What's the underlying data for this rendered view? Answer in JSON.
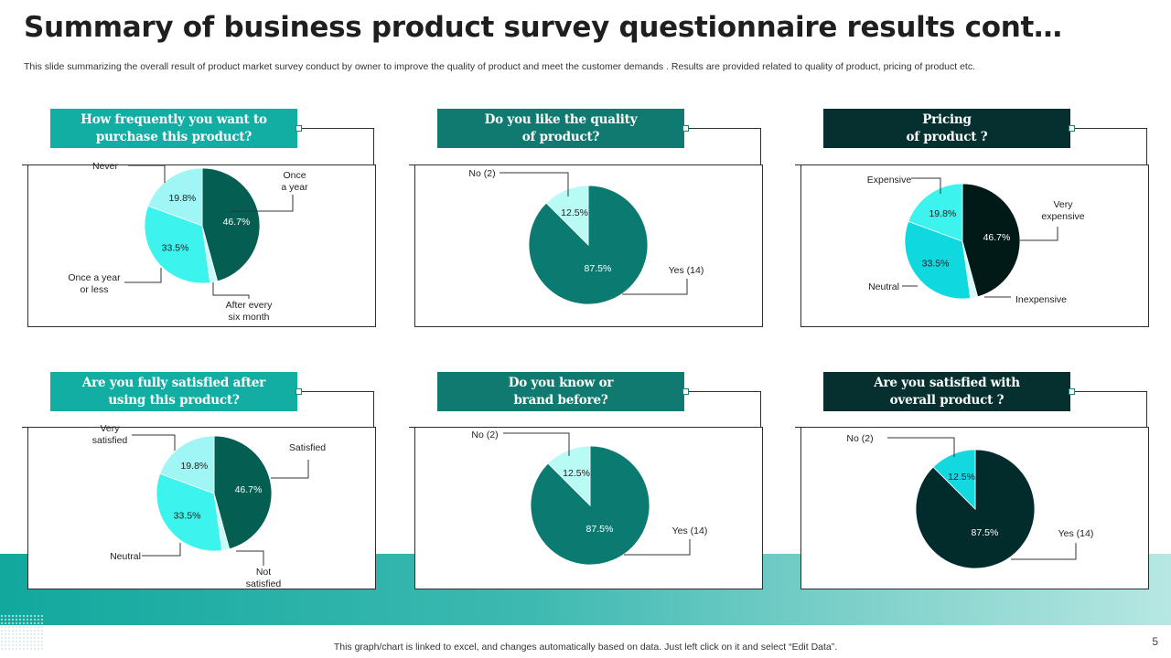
{
  "page": {
    "title": "Summary of business product survey questionnaire results cont…",
    "subtitle": "This slide summarizing the overall result of product market survey conduct by owner to improve the quality of product and meet the customer demands . Results are provided related to  quality of product, pricing of product etc.",
    "footer": "This graph/chart is linked to excel, and changes automatically based on data. Just left click on it and select “Edit Data”.",
    "page_number": "5"
  },
  "colors": {
    "teal_light_header": "#12ada3",
    "teal_mid_header": "#117a70",
    "teal_dark_header": "#05302f",
    "darkest": "#011a18",
    "dark_green": "#055e52",
    "teal": "#0b7a70",
    "aqua": "#3df3ee",
    "aqua_mid": "#0fd8df",
    "pale": "#9ff6f5",
    "pale_aqua": "#b8fbf5",
    "cyan": "#14d8df"
  },
  "chart_data": [
    {
      "type": "pie",
      "title": "How frequently you want to purchase this  product?",
      "title_lines": [
        "How frequently you want to",
        "purchase this  product?"
      ],
      "header_color": "#12ada3",
      "slices": [
        {
          "label": "Once a year",
          "label_lines": [
            "Once",
            "a year"
          ],
          "value": 46.7,
          "display": "46.7%",
          "color": "#055e52",
          "text_color": "#ffffff"
        },
        {
          "label": "After every six month",
          "label_lines": [
            "After every",
            "six month"
          ],
          "value": 2.1,
          "display": "",
          "color": "#c8fbf8",
          "text_color": "#222"
        },
        {
          "label": "Once a year or less",
          "label_lines": [
            "Once a year",
            "or less"
          ],
          "value": 33.5,
          "display": "33.5%",
          "color": "#3df3ee",
          "text_color": "#222"
        },
        {
          "label": "Never",
          "label_lines": [
            "Never"
          ],
          "value": 19.8,
          "display": "19.8%",
          "color": "#9ff6f5",
          "text_color": "#222"
        }
      ]
    },
    {
      "type": "pie",
      "title": "Do you like the quality of product?",
      "title_lines": [
        "Do you like the quality",
        "of product?"
      ],
      "header_color": "#117a70",
      "slices": [
        {
          "label": "Yes (14)",
          "label_lines": [
            "Yes (14)"
          ],
          "value": 87.5,
          "display": "87.5%",
          "color": "#0b7a70",
          "text_color": "#ffffff"
        },
        {
          "label": "No (2)",
          "label_lines": [
            "No (2)"
          ],
          "value": 12.5,
          "display": "12.5%",
          "color": "#b8fbf5",
          "text_color": "#222"
        }
      ]
    },
    {
      "type": "pie",
      "title": "Pricing of product ?",
      "title_lines": [
        "Pricing",
        "of product ?"
      ],
      "header_color": "#05302f",
      "slices": [
        {
          "label": "Very expensive",
          "label_lines": [
            "Very",
            "expensive"
          ],
          "value": 46.7,
          "display": "46.7%",
          "color": "#011a18",
          "text_color": "#ffffff"
        },
        {
          "label": "Inexpensive",
          "label_lines": [
            "Inexpensive"
          ],
          "value": 2.1,
          "display": "",
          "color": "#d6fbfb",
          "text_color": "#222"
        },
        {
          "label": "Neutral",
          "label_lines": [
            "Neutral"
          ],
          "value": 33.5,
          "display": "33.5%",
          "color": "#0fd8df",
          "text_color": "#222"
        },
        {
          "label": "Expensive",
          "label_lines": [
            "Expensive"
          ],
          "value": 19.8,
          "display": "19.8%",
          "color": "#3df3ee",
          "text_color": "#222"
        }
      ]
    },
    {
      "type": "pie",
      "title": "Are you fully satisfied after using this product?",
      "title_lines": [
        "Are you fully satisfied after",
        "using this product?"
      ],
      "header_color": "#12ada3",
      "slices": [
        {
          "label": "Satisfied",
          "label_lines": [
            "Satisfied"
          ],
          "value": 46.7,
          "display": "46.7%",
          "color": "#055e52",
          "text_color": "#ffffff"
        },
        {
          "label": "Not satisfied",
          "label_lines": [
            "Not",
            "satisfied"
          ],
          "value": 2.1,
          "display": "",
          "color": "#c8fbf8",
          "text_color": "#222"
        },
        {
          "label": "Neutral",
          "label_lines": [
            "Neutral"
          ],
          "value": 33.5,
          "display": "33.5%",
          "color": "#3df3ee",
          "text_color": "#222"
        },
        {
          "label": "Very satisfied",
          "label_lines": [
            "Very",
            "satisfied"
          ],
          "value": 19.8,
          "display": "19.8%",
          "color": "#9ff6f5",
          "text_color": "#222"
        }
      ]
    },
    {
      "type": "pie",
      "title": "Do you know or brand before?",
      "title_lines": [
        "Do you know or",
        "brand before?"
      ],
      "header_color": "#117a70",
      "slices": [
        {
          "label": "Yes (14)",
          "label_lines": [
            "Yes (14)"
          ],
          "value": 87.5,
          "display": "87.5%",
          "color": "#0b7a70",
          "text_color": "#ffffff"
        },
        {
          "label": "No (2)",
          "label_lines": [
            "No (2)"
          ],
          "value": 12.5,
          "display": "12.5%",
          "color": "#b8fbf5",
          "text_color": "#222"
        }
      ]
    },
    {
      "type": "pie",
      "title": "Are you satisfied with overall product ?",
      "title_lines": [
        "Are you satisfied with",
        "overall product ?"
      ],
      "header_color": "#05302f",
      "slices": [
        {
          "label": "Yes (14)",
          "label_lines": [
            "Yes (14)"
          ],
          "value": 87.5,
          "display": "87.5%",
          "color": "#022c2c",
          "text_color": "#ffffff"
        },
        {
          "label": "No (2)",
          "label_lines": [
            "No (2)"
          ],
          "value": 12.5,
          "display": "12.5%",
          "color": "#14d8df",
          "text_color": "#222"
        }
      ]
    }
  ]
}
